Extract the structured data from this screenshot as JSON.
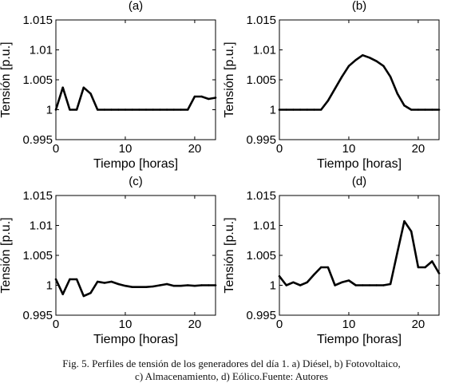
{
  "chart_data": [
    {
      "type": "line",
      "title": "(a)",
      "xlabel": "Tiempo [horas]",
      "ylabel": "Tensión [p.u.]",
      "xlim": [
        0,
        23
      ],
      "ylim": [
        0.995,
        1.015
      ],
      "xticks": [
        0,
        10,
        20
      ],
      "xtick_labels": [
        "0",
        "10",
        "20"
      ],
      "yticks": [
        0.995,
        1,
        1.005,
        1.01,
        1.015
      ],
      "ytick_labels": [
        "0.995",
        "1",
        "1.005",
        "1.01",
        "1.015"
      ],
      "grid": false,
      "series": [
        {
          "x": [
            0,
            1,
            2,
            3,
            4,
            5,
            6,
            7,
            8,
            9,
            10,
            11,
            12,
            13,
            14,
            15,
            16,
            17,
            18,
            19,
            20,
            21,
            22,
            23
          ],
          "y": [
            1.0,
            1.0037,
            1.0,
            1.0,
            1.0037,
            1.0027,
            1.0,
            1.0,
            1.0,
            1.0,
            1.0,
            1.0,
            1.0,
            1.0,
            1.0,
            1.0,
            1.0,
            1.0,
            1.0,
            1.0,
            1.0022,
            1.0022,
            1.0018,
            1.002
          ]
        }
      ]
    },
    {
      "type": "line",
      "title": "(b)",
      "xlabel": "Tiempo [horas]",
      "ylabel": "Tensión [p.u.]",
      "xlim": [
        0,
        23
      ],
      "ylim": [
        0.995,
        1.015
      ],
      "xticks": [
        0,
        10,
        20
      ],
      "xtick_labels": [
        "0",
        "10",
        "20"
      ],
      "yticks": [
        0.995,
        1,
        1.005,
        1.01,
        1.015
      ],
      "ytick_labels": [
        "0.995",
        "1",
        "1.005",
        "1.01",
        "1.015"
      ],
      "grid": false,
      "series": [
        {
          "x": [
            0,
            1,
            2,
            3,
            4,
            5,
            6,
            7,
            8,
            9,
            10,
            11,
            12,
            13,
            14,
            15,
            16,
            17,
            18,
            19,
            20,
            21,
            22,
            23
          ],
          "y": [
            1.0,
            1.0,
            1.0,
            1.0,
            1.0,
            1.0,
            1.0,
            1.0015,
            1.0035,
            1.0055,
            1.0073,
            1.0083,
            1.0091,
            1.0087,
            1.0081,
            1.0073,
            1.0055,
            1.0027,
            1.0007,
            1.0,
            1.0,
            1.0,
            1.0,
            1.0
          ]
        }
      ]
    },
    {
      "type": "line",
      "title": "(c)",
      "xlabel": "Tiempo [horas]",
      "ylabel": "Tensión [p.u.]",
      "xlim": [
        0,
        23
      ],
      "ylim": [
        0.995,
        1.015
      ],
      "xticks": [
        0,
        10,
        20
      ],
      "xtick_labels": [
        "0",
        "10",
        "20"
      ],
      "yticks": [
        0.995,
        1,
        1.005,
        1.01,
        1.015
      ],
      "ytick_labels": [
        "0.995",
        "1",
        "1.005",
        "1.01",
        "1.015"
      ],
      "grid": false,
      "series": [
        {
          "x": [
            0,
            1,
            2,
            3,
            4,
            5,
            6,
            7,
            8,
            9,
            10,
            11,
            12,
            13,
            14,
            15,
            16,
            17,
            18,
            19,
            20,
            21,
            22,
            23
          ],
          "y": [
            1.001,
            0.9985,
            1.001,
            1.001,
            0.9982,
            0.9987,
            1.0006,
            1.0004,
            1.0006,
            1.0002,
            0.9999,
            0.9997,
            0.9997,
            0.9997,
            0.9998,
            1.0,
            1.0002,
            0.9999,
            0.9999,
            1.0,
            0.9999,
            1.0,
            1.0,
            1.0
          ]
        }
      ]
    },
    {
      "type": "line",
      "title": "(d)",
      "xlabel": "Tiempo [horas]",
      "ylabel": "Tensión [p.u.]",
      "xlim": [
        0,
        23
      ],
      "ylim": [
        0.995,
        1.015
      ],
      "xticks": [
        0,
        10,
        20
      ],
      "xtick_labels": [
        "0",
        "10",
        "20"
      ],
      "yticks": [
        0.995,
        1,
        1.005,
        1.01,
        1.015
      ],
      "ytick_labels": [
        "0.995",
        "1",
        "1.005",
        "1.01",
        "1.015"
      ],
      "grid": false,
      "series": [
        {
          "x": [
            0,
            1,
            2,
            3,
            4,
            5,
            6,
            7,
            8,
            9,
            10,
            11,
            12,
            13,
            14,
            15,
            16,
            17,
            18,
            19,
            20,
            21,
            22,
            23
          ],
          "y": [
            1.0015,
            1.0,
            1.0005,
            1.0,
            1.0005,
            1.0018,
            1.003,
            1.003,
            1.0,
            1.0005,
            1.0008,
            1.0,
            1.0,
            1.0,
            1.0,
            1.0,
            1.0002,
            1.0055,
            1.0107,
            1.009,
            1.003,
            1.003,
            1.004,
            1.002
          ]
        }
      ]
    }
  ],
  "caption": {
    "line1": "Fig. 5. Perfiles de tensión de los generadores del día 1. a) Diésel, b) Fotovoltaico,",
    "line2": "c) Almacenamiento, d) Eólico.Fuente: Autores"
  },
  "colors": {
    "line": "#000000",
    "axes": "#000000",
    "background": "#ffffff"
  }
}
